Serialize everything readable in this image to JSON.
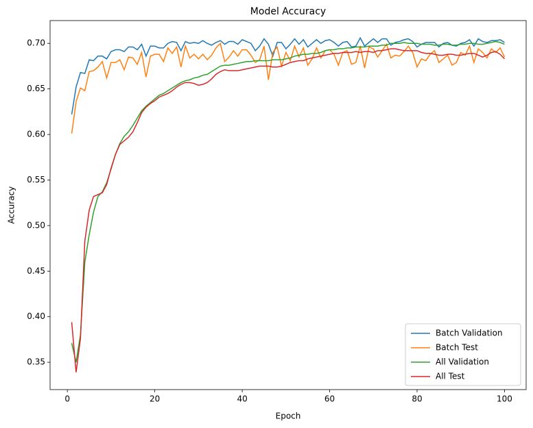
{
  "chart_data": {
    "type": "line",
    "title": "Model Accuracy",
    "x_label": "Epoch",
    "y_label": "Accuracy",
    "x": [
      1,
      2,
      3,
      4,
      5,
      6,
      7,
      8,
      9,
      10,
      11,
      12,
      13,
      14,
      15,
      16,
      17,
      18,
      19,
      20,
      21,
      22,
      23,
      24,
      25,
      26,
      27,
      28,
      29,
      30,
      31,
      32,
      33,
      34,
      35,
      36,
      37,
      38,
      39,
      40,
      41,
      42,
      43,
      44,
      45,
      46,
      47,
      48,
      49,
      50,
      51,
      52,
      53,
      54,
      55,
      56,
      57,
      58,
      59,
      60,
      61,
      62,
      63,
      64,
      65,
      66,
      67,
      68,
      69,
      70,
      71,
      72,
      73,
      74,
      75,
      76,
      77,
      78,
      79,
      80,
      81,
      82,
      83,
      84,
      85,
      86,
      87,
      88,
      89,
      90,
      91,
      92,
      93,
      94,
      95,
      96,
      97,
      98,
      99,
      100
    ],
    "series": [
      {
        "name": "Batch Validation",
        "color": "#1f77b4",
        "values": [
          0.622,
          0.652,
          0.668,
          0.667,
          0.682,
          0.681,
          0.686,
          0.686,
          0.683,
          0.691,
          0.693,
          0.693,
          0.691,
          0.696,
          0.696,
          0.693,
          0.699,
          0.686,
          0.697,
          0.697,
          0.695,
          0.695,
          0.7,
          0.702,
          0.701,
          0.692,
          0.702,
          0.7,
          0.701,
          0.7,
          0.703,
          0.7,
          0.698,
          0.701,
          0.703,
          0.699,
          0.702,
          0.702,
          0.699,
          0.704,
          0.702,
          0.7,
          0.692,
          0.697,
          0.705,
          0.699,
          0.686,
          0.701,
          0.701,
          0.694,
          0.699,
          0.705,
          0.699,
          0.704,
          0.696,
          0.7,
          0.704,
          0.7,
          0.703,
          0.704,
          0.701,
          0.697,
          0.701,
          0.702,
          0.696,
          0.697,
          0.706,
          0.697,
          0.701,
          0.705,
          0.701,
          0.705,
          0.705,
          0.698,
          0.701,
          0.702,
          0.704,
          0.705,
          0.702,
          0.696,
          0.699,
          0.701,
          0.701,
          0.701,
          0.696,
          0.7,
          0.701,
          0.698,
          0.697,
          0.7,
          0.701,
          0.704,
          0.697,
          0.705,
          0.702,
          0.701,
          0.703,
          0.703,
          0.704,
          0.701
        ]
      },
      {
        "name": "Batch Test",
        "color": "#ff7f0e",
        "values": [
          0.601,
          0.636,
          0.651,
          0.648,
          0.669,
          0.67,
          0.674,
          0.68,
          0.662,
          0.679,
          0.679,
          0.682,
          0.671,
          0.685,
          0.684,
          0.677,
          0.69,
          0.663,
          0.686,
          0.688,
          0.688,
          0.68,
          0.695,
          0.689,
          0.696,
          0.674,
          0.697,
          0.684,
          0.688,
          0.683,
          0.688,
          0.682,
          0.687,
          0.695,
          0.7,
          0.68,
          0.685,
          0.692,
          0.686,
          0.693,
          0.693,
          0.687,
          0.679,
          0.682,
          0.697,
          0.66,
          0.69,
          0.696,
          0.675,
          0.69,
          0.681,
          0.697,
          0.685,
          0.695,
          0.676,
          0.683,
          0.695,
          0.684,
          0.692,
          0.693,
          0.688,
          0.676,
          0.69,
          0.692,
          0.677,
          0.679,
          0.697,
          0.673,
          0.696,
          0.694,
          0.685,
          0.692,
          0.699,
          0.684,
          0.687,
          0.686,
          0.691,
          0.697,
          0.69,
          0.674,
          0.683,
          0.681,
          0.688,
          0.692,
          0.679,
          0.683,
          0.687,
          0.676,
          0.679,
          0.69,
          0.687,
          0.697,
          0.679,
          0.694,
          0.69,
          0.684,
          0.694,
          0.69,
          0.695,
          0.685
        ]
      },
      {
        "name": "All Validation",
        "color": "#2ca02c",
        "values": [
          0.371,
          0.35,
          0.38,
          0.46,
          0.49,
          0.515,
          0.532,
          0.537,
          0.547,
          0.562,
          0.578,
          0.59,
          0.598,
          0.603,
          0.61,
          0.618,
          0.626,
          0.631,
          0.635,
          0.639,
          0.643,
          0.645,
          0.648,
          0.651,
          0.654,
          0.657,
          0.659,
          0.66,
          0.662,
          0.663,
          0.665,
          0.666,
          0.669,
          0.672,
          0.675,
          0.676,
          0.676,
          0.677,
          0.678,
          0.679,
          0.68,
          0.68,
          0.681,
          0.681,
          0.681,
          0.681,
          0.682,
          0.682,
          0.682,
          0.683,
          0.684,
          0.686,
          0.687,
          0.688,
          0.688,
          0.689,
          0.689,
          0.69,
          0.692,
          0.693,
          0.693,
          0.694,
          0.694,
          0.695,
          0.695,
          0.696,
          0.696,
          0.696,
          0.697,
          0.697,
          0.697,
          0.698,
          0.698,
          0.7,
          0.7,
          0.7,
          0.701,
          0.7,
          0.7,
          0.7,
          0.699,
          0.699,
          0.699,
          0.698,
          0.698,
          0.699,
          0.699,
          0.698,
          0.698,
          0.699,
          0.699,
          0.7,
          0.7,
          0.699,
          0.699,
          0.7,
          0.701,
          0.702,
          0.701,
          0.699
        ]
      },
      {
        "name": "All Test",
        "color": "#d62728",
        "values": [
          0.394,
          0.339,
          0.376,
          0.483,
          0.517,
          0.532,
          0.534,
          0.536,
          0.545,
          0.563,
          0.578,
          0.589,
          0.593,
          0.597,
          0.603,
          0.613,
          0.624,
          0.63,
          0.634,
          0.637,
          0.641,
          0.643,
          0.645,
          0.648,
          0.652,
          0.655,
          0.657,
          0.657,
          0.656,
          0.654,
          0.655,
          0.657,
          0.661,
          0.666,
          0.669,
          0.671,
          0.67,
          0.67,
          0.67,
          0.671,
          0.672,
          0.673,
          0.674,
          0.675,
          0.675,
          0.675,
          0.674,
          0.674,
          0.675,
          0.677,
          0.679,
          0.68,
          0.681,
          0.681,
          0.683,
          0.684,
          0.685,
          0.686,
          0.687,
          0.688,
          0.689,
          0.689,
          0.69,
          0.69,
          0.69,
          0.691,
          0.69,
          0.691,
          0.691,
          0.69,
          0.692,
          0.692,
          0.693,
          0.694,
          0.694,
          0.693,
          0.692,
          0.692,
          0.692,
          0.692,
          0.69,
          0.689,
          0.689,
          0.688,
          0.687,
          0.687,
          0.688,
          0.688,
          0.687,
          0.687,
          0.688,
          0.689,
          0.689,
          0.687,
          0.685,
          0.687,
          0.69,
          0.691,
          0.688,
          0.683
        ]
      }
    ],
    "xlim": [
      -3.95,
      104.95
    ],
    "ylim": [
      0.32,
      0.725
    ],
    "xticks": [
      0,
      20,
      40,
      60,
      80,
      100
    ],
    "yticks": [
      0.35,
      {
        "value": 0.4,
        "label": "0.40"
      },
      0.45,
      {
        "value": 0.5,
        "label": "0.50"
      },
      0.55,
      {
        "value": 0.6,
        "label": "0.60"
      },
      0.65,
      {
        "value": 0.7,
        "label": "0.70"
      }
    ],
    "legend": "lower right",
    "grid": false
  }
}
